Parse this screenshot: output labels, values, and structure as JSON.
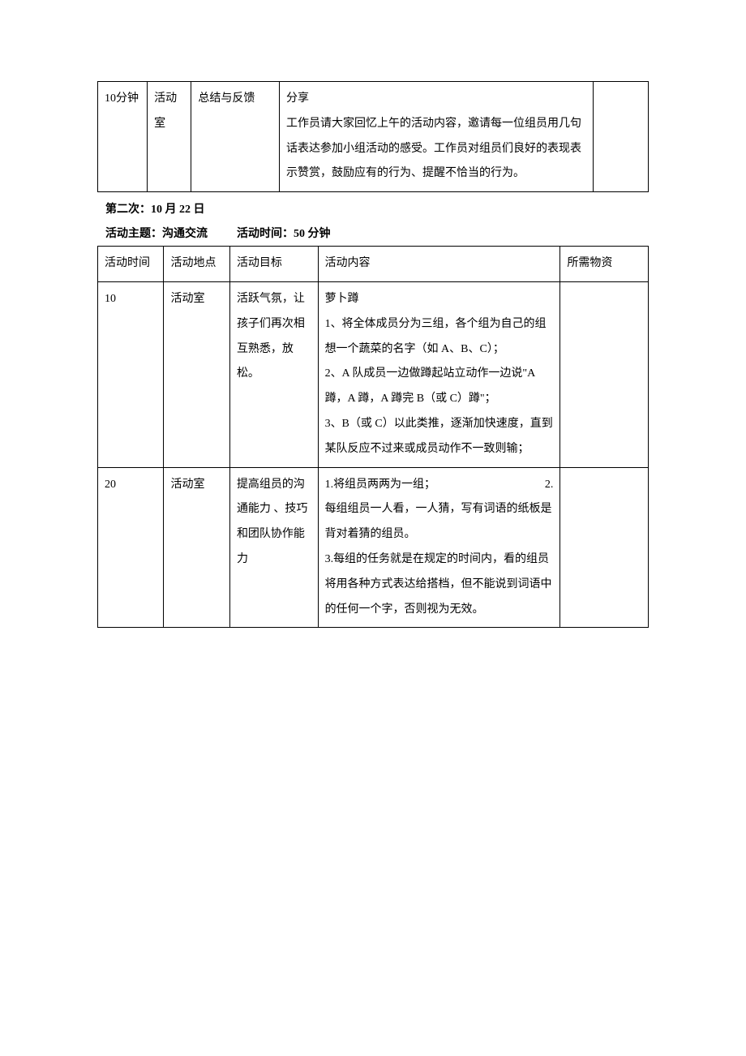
{
  "table1": {
    "row": {
      "time": "10分钟",
      "place": "活动室",
      "goal": "总结与反馈",
      "content": "分享\n工作员请大家回忆上午的活动内容，邀请每一位组员用几句话表达参加小组活动的感受。工作员对组员们良好的表现表示赞赏，鼓励应有的行为、提醒不恰当的行为。",
      "materials": ""
    }
  },
  "section2": {
    "heading_date": "第二次：10 月 22 日",
    "heading_theme_label": "活动主题：",
    "heading_theme": "沟通交流",
    "heading_time_label": "活动时间：",
    "heading_time": "50 分钟"
  },
  "table2": {
    "headers": {
      "time": "活动时间",
      "place": "活动地点",
      "goal": "活动目标",
      "content": "活动内容",
      "materials": "所需物资"
    },
    "row1": {
      "time": "10",
      "place": "活动室",
      "goal": "活跃气氛，让孩子们再次相互熟悉，放松。",
      "content": "萝卜蹲\n1、将全体成员分为三组，各个组为自己的组想一个蔬菜的名字（如 A、B、C）；\n2、A 队成员一边做蹲起站立动作一边说\"A 蹲，A 蹲，A 蹲完 B（或 C）蹲\"；\n3、B（或 C）以此类推，逐渐加快速度，直到某队反应不过来或成员动作不一致则输；",
      "materials": ""
    },
    "row2": {
      "time": "20",
      "place": "活动室",
      "goal": "提高组员的沟通能力 、技巧和团队协作能力",
      "content_line1_a": "1.将组员两两为一组；",
      "content_line1_b": "2.",
      "content_rest": "每组组员一人看，一人猜，写有词语的纸板是背对着猜的组员。\n3.每组的任务就是在规定的时间内，看的组员将用各种方式表达给搭档，但不能说到词语中的任何一个字，否则视为无效。",
      "materials": ""
    }
  },
  "style": {
    "text_color": "#000000",
    "background_color": "#ffffff",
    "border_color": "#000000",
    "font_size": 14,
    "line_height": 2.2
  }
}
